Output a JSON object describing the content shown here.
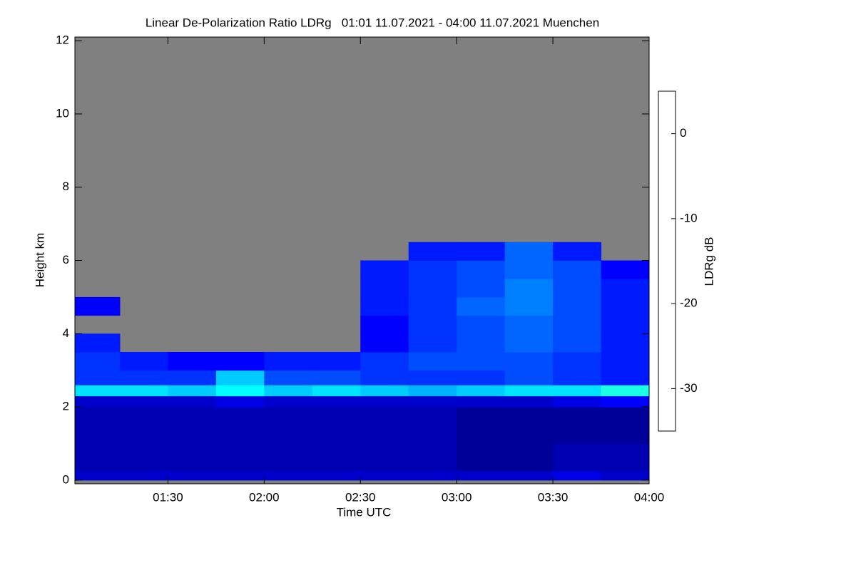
{
  "chart_data": {
    "type": "heatmap",
    "title": "Linear De-Polarization Ratio LDRg   01:01 11.07.2021 - 04:00 11.07.2021 Muenchen",
    "x_label": "Time UTC",
    "y_label": "Height km",
    "colorbar_label": "LDRg dB",
    "colormap": "jet",
    "no_data_color": "#808080",
    "x": [
      61,
      75,
      90,
      105,
      120,
      135,
      150,
      165,
      180,
      195,
      210,
      225,
      240
    ],
    "y": [
      0,
      0.25,
      1,
      2,
      2.3,
      2.6,
      3,
      3.5,
      4,
      4.5,
      5,
      5.5,
      6,
      6.5,
      12
    ],
    "z": [
      [
        -32,
        -32,
        -32,
        -32,
        -32,
        -32,
        -32,
        -32,
        -32,
        -32,
        -31,
        -32
      ],
      [
        -33,
        -33,
        -33,
        -33,
        -33,
        -33,
        -33,
        -33,
        -34,
        -34,
        -33,
        -33
      ],
      [
        -33,
        -33,
        -33,
        -33,
        -33,
        -33,
        -33,
        -33,
        -34,
        -34,
        -34,
        -34
      ],
      [
        -32,
        -32,
        -32,
        -31,
        -32,
        -32,
        -32,
        -32,
        -32,
        -32,
        -31,
        -30
      ],
      [
        -21,
        -21,
        -22,
        -20,
        -22,
        -21,
        -22,
        -23,
        -22,
        -21,
        -21,
        -19
      ],
      [
        -28,
        -28,
        -28,
        -22,
        -27,
        -27,
        -28,
        -28,
        -28,
        -27,
        -28,
        -29
      ],
      [
        -28,
        -29,
        -30,
        -30,
        -29,
        -29,
        -28,
        -27,
        -27,
        -27,
        -28,
        -29
      ],
      [
        -29,
        null,
        null,
        null,
        null,
        null,
        -30,
        -28,
        -27,
        -26,
        -27,
        -29
      ],
      [
        null,
        null,
        null,
        null,
        null,
        null,
        -30,
        -28,
        -27,
        -26,
        -27,
        -29
      ],
      [
        -30,
        null,
        null,
        null,
        null,
        null,
        -29,
        -28,
        -26,
        -25,
        -27,
        -29
      ],
      [
        null,
        null,
        null,
        null,
        null,
        null,
        -29,
        -28,
        -27,
        -25,
        -27,
        -29
      ],
      [
        null,
        null,
        null,
        null,
        null,
        null,
        -29,
        -28,
        -27,
        -26,
        -27,
        -30
      ],
      [
        null,
        null,
        null,
        null,
        null,
        null,
        null,
        -29,
        -29,
        -26,
        -29,
        null
      ],
      [
        null,
        null,
        null,
        null,
        null,
        null,
        null,
        null,
        null,
        null,
        null,
        null
      ]
    ],
    "xlim": [
      61,
      240
    ],
    "xticks": [
      {
        "value": 90,
        "label": "01:30"
      },
      {
        "value": 120,
        "label": "02:00"
      },
      {
        "value": 150,
        "label": "02:30"
      },
      {
        "value": 180,
        "label": "03:00"
      },
      {
        "value": 210,
        "label": "03:30"
      },
      {
        "value": 240,
        "label": "04:00"
      }
    ],
    "ylim": [
      -0.1,
      12.1
    ],
    "yticks": [
      0,
      2,
      4,
      6,
      8,
      10,
      12
    ],
    "clim": [
      -35,
      5
    ],
    "cticks": [
      -30,
      -20,
      -10,
      0
    ]
  }
}
